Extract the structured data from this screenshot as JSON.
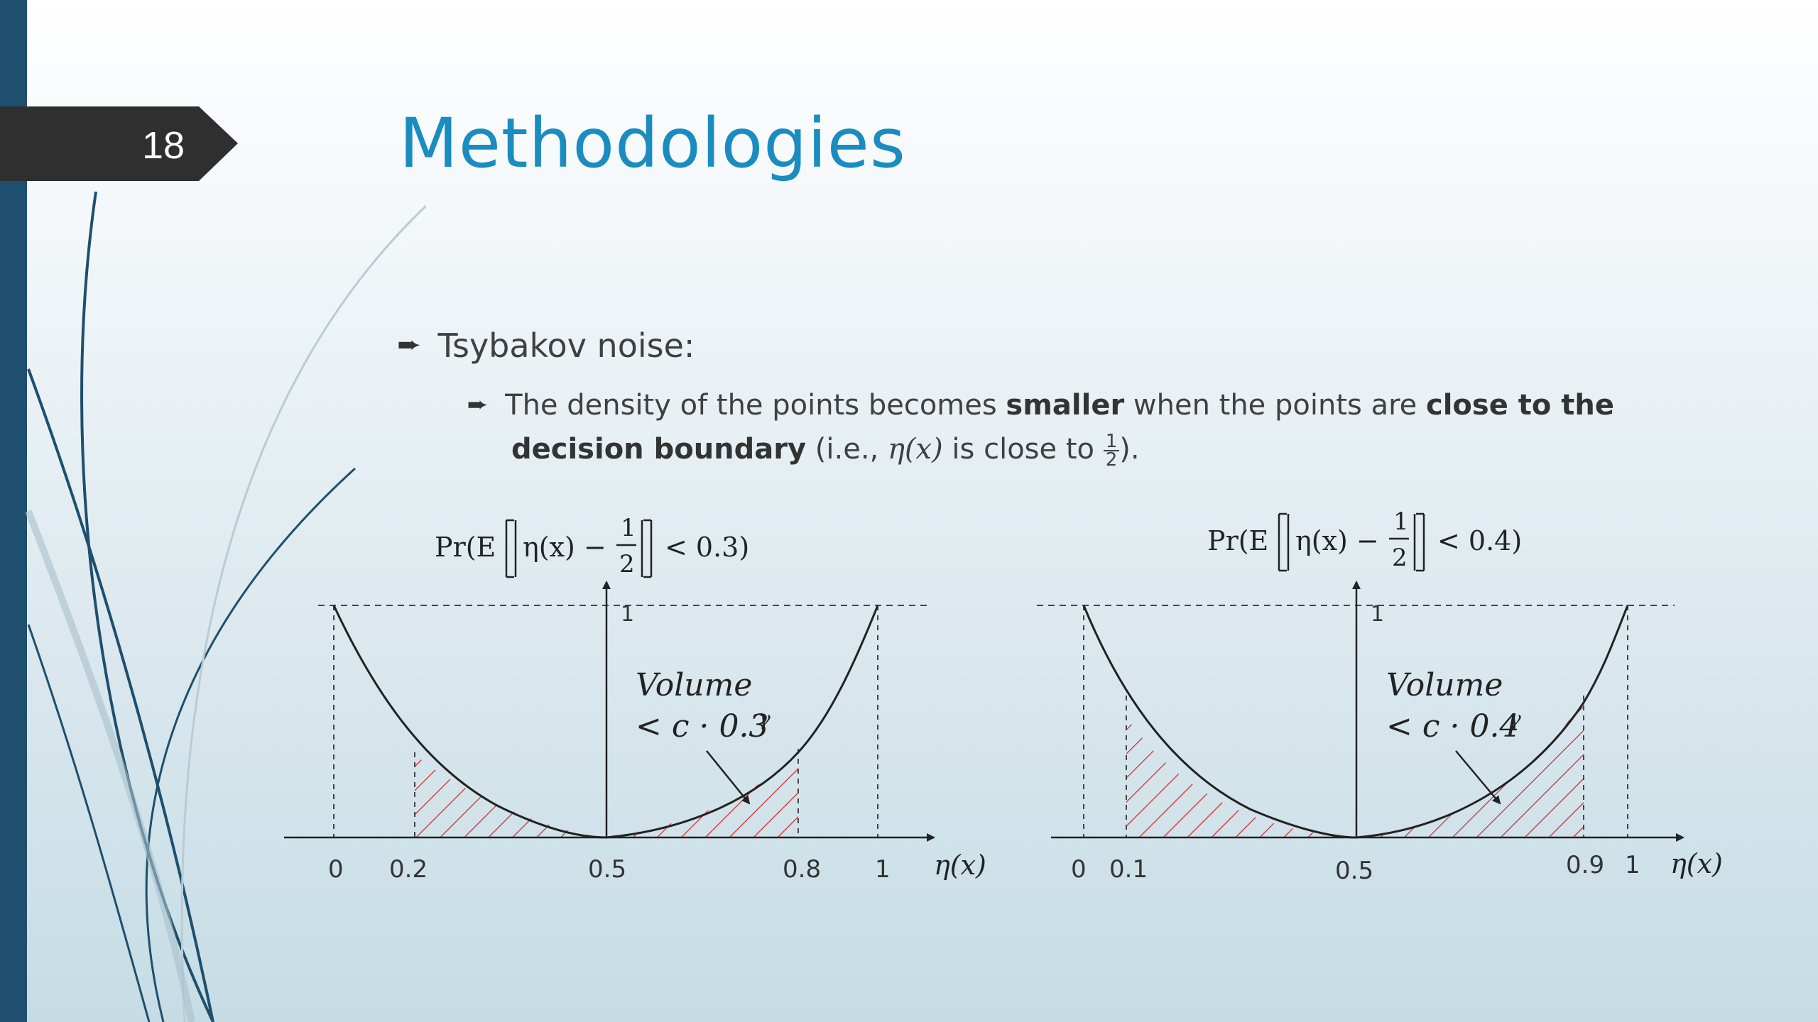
{
  "slide": {
    "number": "18",
    "title": "Methodologies"
  },
  "bullets": {
    "level1": "Tsybakov noise:",
    "level2": {
      "t1": "The density of the points becomes ",
      "b1": "smaller",
      "t2": " when the points are ",
      "b2": "close to the",
      "b3": "decision boundary",
      "t3": " (i.e., ",
      "math": "η(x)",
      "t4": " is close to ",
      "frac_num": "1",
      "frac_den": "2",
      "t5": ")."
    }
  },
  "left_graph": {
    "label_prefix": "Pr(E",
    "label_eta": "η(x) −",
    "label_num": "1",
    "label_den": "2",
    "label_suffix": "< 0.3)",
    "y_tick": "1",
    "x_ticks": [
      "0",
      "0.2",
      "0.5",
      "0.8",
      "1"
    ],
    "x_axis_label": "η(x)",
    "annotation_line1": "Volume",
    "annotation_line2": "< c · 0.3",
    "annotation_exp": "γ",
    "shaded_range": [
      0.2,
      0.8
    ]
  },
  "right_graph": {
    "label_prefix": "Pr(E",
    "label_eta": "η(x) −",
    "label_num": "1",
    "label_den": "2",
    "label_suffix": "< 0.4)",
    "y_tick": "1",
    "x_ticks": [
      "0",
      "0.1",
      "0.5",
      "0.9",
      "1"
    ],
    "x_axis_label": "η(x)",
    "annotation_line1": "Volume",
    "annotation_line2": "< c · 0.4",
    "annotation_exp": "γ",
    "shaded_range": [
      0.1,
      0.9
    ]
  },
  "colors": {
    "title": "#1a8cbf",
    "sidebar": "#1e4f6e",
    "hatch": "#d62828"
  }
}
